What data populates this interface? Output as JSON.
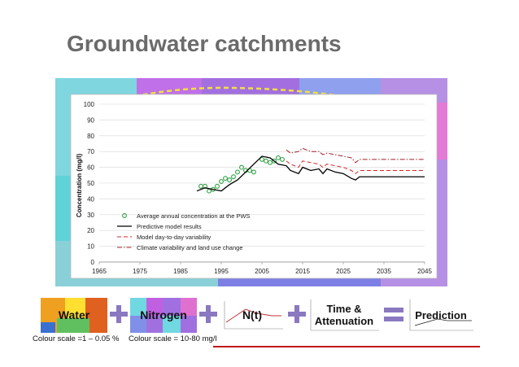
{
  "slide": {
    "title": "Groundwater catchments"
  },
  "chart_data": {
    "type": "line",
    "ylabel": "Concentration (mg/l)",
    "xlim": [
      1965,
      2045
    ],
    "ylim": [
      0,
      100
    ],
    "x_ticks": [
      1965,
      1975,
      1985,
      1995,
      2005,
      2015,
      2025,
      2035,
      2045
    ],
    "y_ticks": [
      0,
      10,
      20,
      30,
      40,
      50,
      60,
      70,
      80,
      90,
      100
    ],
    "grid": "horizontal",
    "legend_position": "bottom-left",
    "series": [
      {
        "name": "Average annual concentration at the PWS",
        "style": "markers",
        "color": "#2ea043",
        "x": [
          1990,
          1991,
          1992,
          1993,
          1994,
          1995,
          1996,
          1997,
          1998,
          1999,
          2000,
          2001,
          2002,
          2003,
          2005,
          2006,
          2007,
          2008,
          2009,
          2010
        ],
        "y": [
          48,
          48,
          45,
          46,
          48,
          51,
          53,
          52,
          54,
          57,
          60,
          58,
          58,
          57,
          65,
          64,
          63,
          64,
          66,
          65
        ]
      },
      {
        "name": "Predictive model results",
        "style": "solid",
        "color": "#000000",
        "x": [
          1989,
          1991,
          1993,
          1995,
          1997,
          1999,
          2001,
          2003,
          2005,
          2007,
          2009,
          2011,
          2012,
          2014,
          2015,
          2017,
          2019,
          2020,
          2021,
          2023,
          2025,
          2027,
          2028,
          2029,
          2030,
          2035,
          2040,
          2045
        ],
        "y": [
          45,
          47,
          46,
          45,
          49,
          52,
          57,
          62,
          67,
          66,
          62,
          61,
          58,
          56,
          60,
          58,
          59,
          56,
          59,
          57,
          56,
          53,
          52,
          54,
          54,
          54,
          54,
          54
        ]
      },
      {
        "name": "Model day-to-day variability",
        "style": "dashed",
        "color": "#d62728",
        "x": [
          2011,
          2012,
          2014,
          2015,
          2017,
          2019,
          2020,
          2021,
          2023,
          2025,
          2027,
          2028,
          2029,
          2030,
          2035,
          2040,
          2045
        ],
        "y": [
          64,
          62,
          60,
          64,
          63,
          62,
          60,
          62,
          61,
          60,
          58,
          56,
          58,
          58,
          58,
          58,
          58
        ]
      },
      {
        "name": "Climate variability and land use change",
        "style": "dash-dot",
        "color": "#a0202a",
        "x": [
          2011,
          2012,
          2014,
          2015,
          2017,
          2019,
          2020,
          2021,
          2023,
          2025,
          2027,
          2028,
          2029,
          2030,
          2035,
          2040,
          2045
        ],
        "y": [
          71,
          69,
          70,
          72,
          70,
          70,
          68,
          69,
          68,
          67,
          66,
          63,
          65,
          65,
          65,
          65,
          65
        ]
      }
    ]
  },
  "flow": {
    "water_label": "Water",
    "nitrogen_label": "Nitrogen",
    "nt_label": "N(t)",
    "time_label_line1": "Time &",
    "time_label_line2": "Attenuation",
    "prediction_label": "Prediction",
    "water_caption": "Colour scale =1 – 0.05 %",
    "nitrogen_caption": "Colour scale = 10-80 mg/l"
  },
  "colors": {
    "title": "#6b6b6b",
    "operator": "#8a78c0",
    "rule": "#c01a1a"
  }
}
